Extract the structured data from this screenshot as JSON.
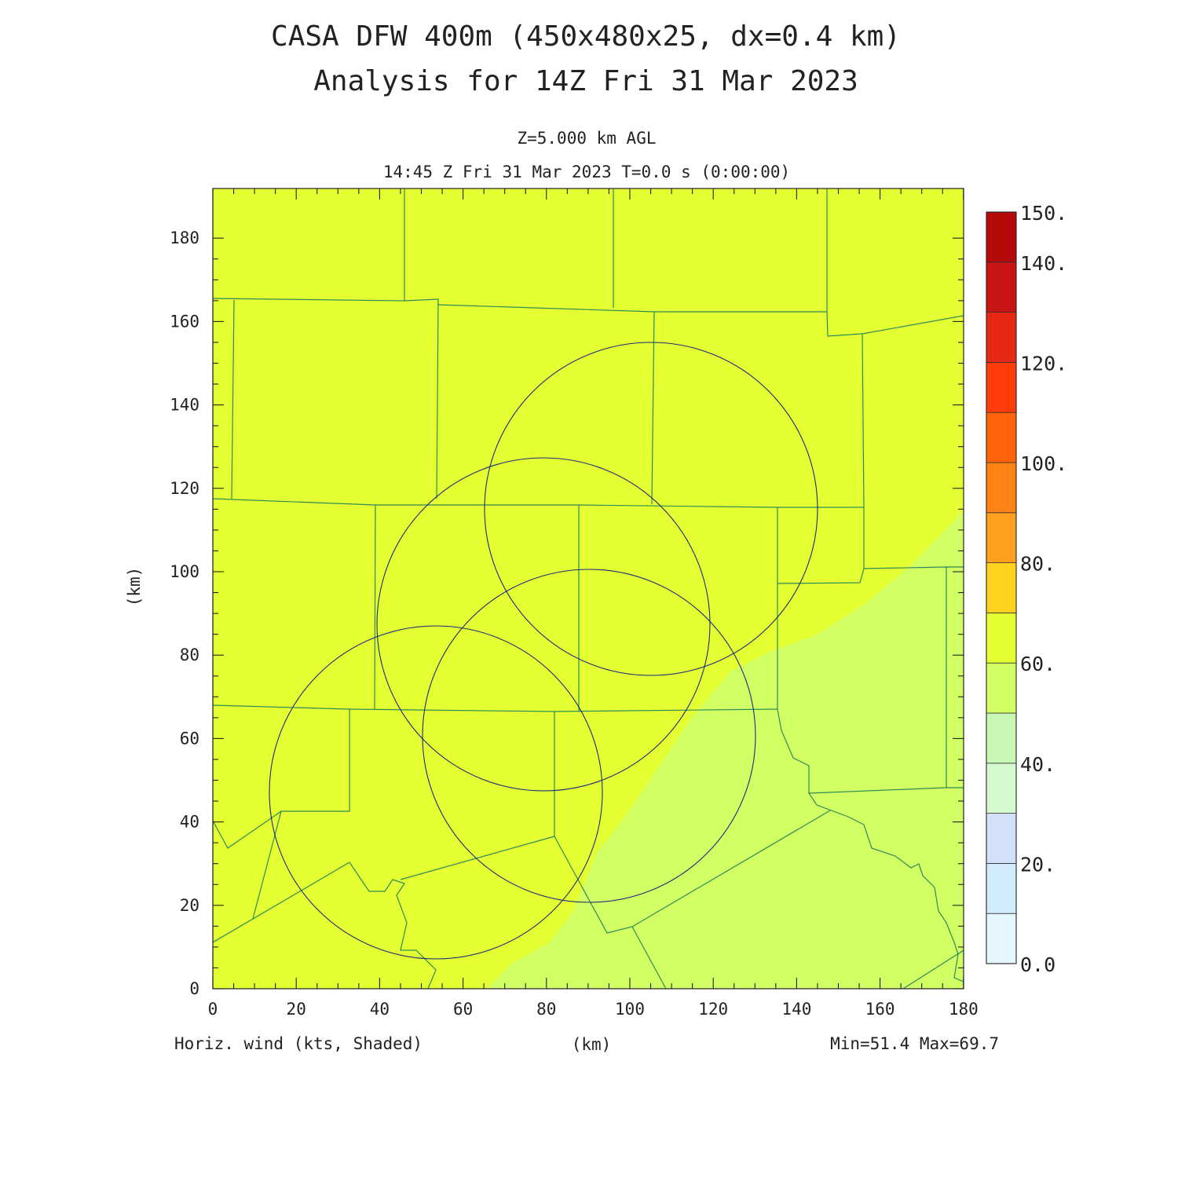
{
  "title_line1": "CASA DFW 400m (450x480x25, dx=0.4 km)",
  "title_line2": "Analysis for 14Z Fri 31 Mar 2023",
  "level_label": "Z=5.000 km AGL",
  "time_label": "14:45 Z Fri 31 Mar 2023   T=0.0 s (0:00:00)",
  "x_axis_label": "(km)",
  "y_axis_label": "(km)",
  "field_label": "Horiz. wind (kts, Shaded)",
  "minmax_label": "Min=51.4 Max=69.7",
  "x_ticks": [
    "0",
    "20",
    "40",
    "60",
    "80",
    "100",
    "120",
    "140",
    "160",
    "180"
  ],
  "y_ticks": [
    "0",
    "20",
    "40",
    "60",
    "80",
    "100",
    "120",
    "140",
    "160",
    "180"
  ],
  "colorbar": {
    "labels": [
      "0.0",
      "20.",
      "40.",
      "60.",
      "80.",
      "100.",
      "120.",
      "140.",
      "150."
    ],
    "bins": [
      {
        "from": 0,
        "to": 10,
        "color": "#e6f6ff"
      },
      {
        "from": 10,
        "to": 20,
        "color": "#d2ecfb"
      },
      {
        "from": 20,
        "to": 30,
        "color": "#d2e0fa"
      },
      {
        "from": 30,
        "to": 40,
        "color": "#d7f9d2"
      },
      {
        "from": 40,
        "to": 50,
        "color": "#c8f8b4"
      },
      {
        "from": 50,
        "to": 60,
        "color": "#d2ff64"
      },
      {
        "from": 60,
        "to": 70,
        "color": "#e4ff32"
      },
      {
        "from": 70,
        "to": 80,
        "color": "#ffd21e"
      },
      {
        "from": 80,
        "to": 90,
        "color": "#ffa01e"
      },
      {
        "from": 90,
        "to": 100,
        "color": "#ff8214"
      },
      {
        "from": 100,
        "to": 110,
        "color": "#ff640a"
      },
      {
        "from": 110,
        "to": 120,
        "color": "#ff3c0a"
      },
      {
        "from": 120,
        "to": 130,
        "color": "#e62814"
      },
      {
        "from": 130,
        "to": 140,
        "color": "#c81414"
      },
      {
        "from": 140,
        "to": 150,
        "color": "#b40a0a"
      }
    ]
  },
  "field_colors": {
    "high": "#e4ff32",
    "low": "#d2ff64"
  },
  "county_line_color": "#2e8b57",
  "radar_ring_color": "#1c2a7a"
}
